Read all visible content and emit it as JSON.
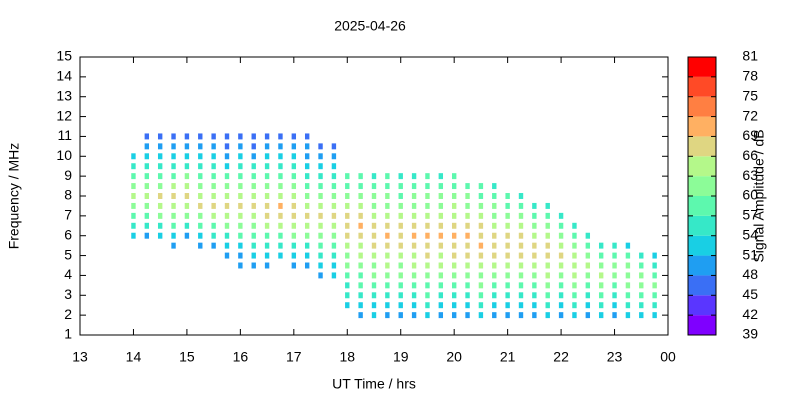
{
  "chart_data": {
    "type": "heatmap",
    "title": "2025-04-26",
    "x_label": "UT Time / hrs",
    "y_label": "Frequency / MHz",
    "colorbar_label": "Signal Amplitude / dB",
    "xlim": [
      13,
      24
    ],
    "xticks": [
      13,
      14,
      15,
      16,
      17,
      18,
      19,
      20,
      21,
      22,
      23,
      {
        "value": 24,
        "label": "00"
      }
    ],
    "ylim": [
      1,
      15
    ],
    "yticks": [
      1,
      2,
      3,
      4,
      5,
      6,
      7,
      8,
      9,
      10,
      11,
      12,
      13,
      14,
      15
    ],
    "clim": [
      39,
      81
    ],
    "cticks": [
      39,
      42,
      45,
      48,
      51,
      54,
      57,
      60,
      63,
      66,
      69,
      72,
      75,
      78,
      81
    ],
    "colormap": [
      "#7f00ff",
      "#5a36ff",
      "#3a6ff5",
      "#1f9ef2",
      "#19cfe4",
      "#36e8c8",
      "#5df8ae",
      "#8cfc98",
      "#b4f88a",
      "#dfd682",
      "#ffb062",
      "#ff7f42",
      "#ff4a26",
      "#ff0000"
    ],
    "frequencies": [
      1.5,
      2,
      2.5,
      3,
      3.5,
      4,
      4.5,
      5,
      5.5,
      6,
      6.5,
      7,
      7.5,
      8,
      8.5,
      9,
      9.5,
      10,
      10.5,
      11
    ],
    "columns": [
      {
        "x": 14.0,
        "values": [
          null,
          null,
          null,
          null,
          null,
          null,
          null,
          null,
          null,
          52,
          55,
          58,
          61,
          63,
          60,
          57,
          54,
          51,
          null,
          null
        ]
      },
      {
        "x": 14.25,
        "values": [
          null,
          null,
          null,
          null,
          null,
          null,
          null,
          null,
          null,
          50,
          54,
          58,
          62,
          64,
          61,
          58,
          55,
          51,
          48,
          45
        ]
      },
      {
        "x": 14.5,
        "values": [
          null,
          null,
          null,
          null,
          null,
          null,
          null,
          null,
          null,
          51,
          56,
          60,
          63,
          66,
          62,
          59,
          55,
          52,
          49,
          46
        ]
      },
      {
        "x": 14.75,
        "values": [
          null,
          null,
          null,
          null,
          null,
          null,
          null,
          null,
          48,
          52,
          57,
          61,
          64,
          66,
          63,
          59,
          56,
          52,
          49,
          46
        ]
      },
      {
        "x": 15.0,
        "values": [
          null,
          null,
          null,
          null,
          null,
          null,
          null,
          null,
          null,
          50,
          56,
          61,
          65,
          67,
          64,
          60,
          56,
          52,
          49,
          45
        ]
      },
      {
        "x": 15.25,
        "values": [
          null,
          null,
          null,
          null,
          null,
          null,
          null,
          null,
          49,
          53,
          58,
          62,
          66,
          64,
          61,
          57,
          54,
          51,
          48,
          45
        ]
      },
      {
        "x": 15.5,
        "values": [
          null,
          null,
          null,
          null,
          null,
          null,
          null,
          null,
          50,
          54,
          59,
          63,
          67,
          65,
          62,
          58,
          55,
          52,
          49,
          46
        ]
      },
      {
        "x": 15.75,
        "values": [
          null,
          null,
          null,
          null,
          null,
          null,
          null,
          48,
          51,
          55,
          60,
          64,
          67,
          64,
          60,
          57,
          53,
          50,
          47,
          45
        ]
      },
      {
        "x": 16.0,
        "values": [
          null,
          null,
          null,
          null,
          null,
          null,
          48,
          50,
          53,
          57,
          61,
          65,
          68,
          65,
          61,
          58,
          54,
          51,
          48,
          45
        ]
      },
      {
        "x": 16.25,
        "values": [
          null,
          null,
          null,
          null,
          null,
          null,
          49,
          51,
          54,
          58,
          62,
          65,
          67,
          64,
          60,
          57,
          54,
          50,
          47,
          45
        ]
      },
      {
        "x": 16.5,
        "values": [
          null,
          null,
          null,
          null,
          null,
          null,
          50,
          52,
          55,
          59,
          63,
          66,
          68,
          64,
          61,
          57,
          54,
          51,
          48,
          46
        ]
      },
      {
        "x": 16.75,
        "values": [
          null,
          null,
          null,
          null,
          null,
          null,
          null,
          51,
          55,
          59,
          63,
          66,
          69,
          65,
          62,
          58,
          55,
          51,
          48,
          46
        ]
      },
      {
        "x": 17.0,
        "values": [
          null,
          null,
          null,
          null,
          null,
          null,
          49,
          52,
          56,
          60,
          63,
          66,
          68,
          64,
          61,
          57,
          54,
          51,
          48,
          45
        ]
      },
      {
        "x": 17.25,
        "values": [
          null,
          null,
          null,
          null,
          null,
          null,
          50,
          53,
          56,
          60,
          64,
          67,
          65,
          62,
          59,
          56,
          53,
          50,
          48,
          46
        ]
      },
      {
        "x": 17.5,
        "values": [
          null,
          null,
          null,
          null,
          null,
          50,
          52,
          55,
          58,
          61,
          64,
          66,
          64,
          61,
          58,
          55,
          52,
          49,
          46,
          null
        ]
      },
      {
        "x": 17.75,
        "values": [
          null,
          null,
          null,
          null,
          null,
          51,
          53,
          56,
          59,
          62,
          65,
          67,
          65,
          62,
          59,
          56,
          53,
          50,
          47,
          null
        ]
      },
      {
        "x": 18.0,
        "values": [
          null,
          null,
          52,
          54,
          56,
          58,
          60,
          62,
          64,
          66,
          68,
          66,
          63,
          61,
          59,
          57,
          null,
          null,
          null,
          null
        ]
      },
      {
        "x": 18.25,
        "values": [
          null,
          50,
          52,
          54,
          57,
          59,
          61,
          63,
          65,
          67,
          69,
          66,
          63,
          61,
          59,
          57,
          null,
          null,
          null,
          null
        ]
      },
      {
        "x": 18.5,
        "values": [
          null,
          51,
          53,
          55,
          57,
          60,
          62,
          64,
          66,
          68,
          66,
          64,
          62,
          60,
          58,
          56,
          null,
          null,
          null,
          null
        ]
      },
      {
        "x": 18.75,
        "values": [
          null,
          50,
          52,
          55,
          58,
          61,
          63,
          65,
          67,
          69,
          67,
          64,
          62,
          60,
          58,
          57,
          null,
          null,
          null,
          null
        ]
      },
      {
        "x": 19.0,
        "values": [
          null,
          49,
          52,
          54,
          57,
          60,
          62,
          64,
          66,
          68,
          66,
          63,
          61,
          59,
          57,
          55,
          null,
          null,
          null,
          null
        ]
      },
      {
        "x": 19.25,
        "values": [
          null,
          50,
          53,
          56,
          58,
          61,
          63,
          65,
          67,
          69,
          67,
          65,
          62,
          60,
          58,
          56,
          null,
          null,
          null,
          null
        ]
      },
      {
        "x": 19.5,
        "values": [
          null,
          51,
          54,
          57,
          59,
          62,
          64,
          66,
          68,
          70,
          67,
          64,
          62,
          60,
          58,
          57,
          null,
          null,
          null,
          null
        ]
      },
      {
        "x": 19.75,
        "values": [
          null,
          50,
          53,
          56,
          59,
          61,
          63,
          65,
          67,
          69,
          66,
          64,
          62,
          60,
          58,
          56,
          null,
          null,
          null,
          null
        ]
      },
      {
        "x": 20.0,
        "values": [
          null,
          49,
          52,
          55,
          58,
          61,
          63,
          66,
          68,
          70,
          68,
          65,
          63,
          61,
          59,
          57,
          null,
          null,
          null,
          null
        ]
      },
      {
        "x": 20.25,
        "values": [
          null,
          50,
          53,
          56,
          59,
          62,
          64,
          66,
          68,
          69,
          67,
          65,
          62,
          60,
          58,
          null,
          null,
          null,
          null,
          null
        ]
      },
      {
        "x": 20.5,
        "values": [
          null,
          51,
          54,
          57,
          60,
          62,
          65,
          67,
          69,
          68,
          66,
          63,
          61,
          59,
          57,
          null,
          null,
          null,
          null,
          null
        ]
      },
      {
        "x": 20.75,
        "values": [
          null,
          50,
          53,
          56,
          59,
          61,
          64,
          66,
          68,
          67,
          65,
          62,
          60,
          58,
          56,
          null,
          null,
          null,
          null,
          null
        ]
      },
      {
        "x": 21.0,
        "values": [
          null,
          49,
          52,
          55,
          58,
          61,
          63,
          66,
          68,
          66,
          64,
          61,
          59,
          57,
          null,
          null,
          null,
          null,
          null,
          null
        ]
      },
      {
        "x": 21.25,
        "values": [
          null,
          50,
          53,
          56,
          59,
          62,
          64,
          67,
          68,
          66,
          63,
          61,
          58,
          56,
          null,
          null,
          null,
          null,
          null,
          null
        ]
      },
      {
        "x": 21.5,
        "values": [
          null,
          50,
          53,
          56,
          59,
          62,
          65,
          67,
          66,
          64,
          61,
          58,
          56,
          null,
          null,
          null,
          null,
          null,
          null,
          null
        ]
      },
      {
        "x": 21.75,
        "values": [
          null,
          51,
          54,
          57,
          60,
          63,
          65,
          67,
          66,
          63,
          60,
          58,
          55,
          null,
          null,
          null,
          null,
          null,
          null,
          null
        ]
      },
      {
        "x": 22.0,
        "values": [
          null,
          50,
          53,
          56,
          59,
          62,
          64,
          66,
          64,
          61,
          58,
          55,
          null,
          null,
          null,
          null,
          null,
          null,
          null,
          null
        ]
      },
      {
        "x": 22.25,
        "values": [
          null,
          51,
          54,
          57,
          60,
          63,
          65,
          64,
          61,
          58,
          55,
          null,
          null,
          null,
          null,
          null,
          null,
          null,
          null,
          null
        ]
      },
      {
        "x": 22.5,
        "values": [
          null,
          50,
          53,
          56,
          59,
          62,
          64,
          62,
          59,
          55,
          null,
          null,
          null,
          null,
          null,
          null,
          null,
          null,
          null,
          null
        ]
      },
      {
        "x": 22.75,
        "values": [
          null,
          51,
          54,
          57,
          60,
          63,
          62,
          59,
          55,
          null,
          null,
          null,
          null,
          null,
          null,
          null,
          null,
          null,
          null,
          null
        ]
      },
      {
        "x": 23.0,
        "values": [
          null,
          50,
          53,
          56,
          59,
          62,
          61,
          58,
          54,
          null,
          null,
          null,
          null,
          null,
          null,
          null,
          null,
          null,
          null,
          null
        ]
      },
      {
        "x": 23.25,
        "values": [
          null,
          51,
          54,
          57,
          60,
          62,
          60,
          57,
          53,
          null,
          null,
          null,
          null,
          null,
          null,
          null,
          null,
          null,
          null,
          null
        ]
      },
      {
        "x": 23.5,
        "values": [
          null,
          52,
          55,
          58,
          61,
          60,
          57,
          54,
          null,
          null,
          null,
          null,
          null,
          null,
          null,
          null,
          null,
          null,
          null,
          null
        ]
      },
      {
        "x": 23.75,
        "values": [
          null,
          51,
          54,
          57,
          60,
          59,
          56,
          53,
          null,
          null,
          null,
          null,
          null,
          null,
          null,
          null,
          null,
          null,
          null,
          null
        ]
      }
    ]
  }
}
